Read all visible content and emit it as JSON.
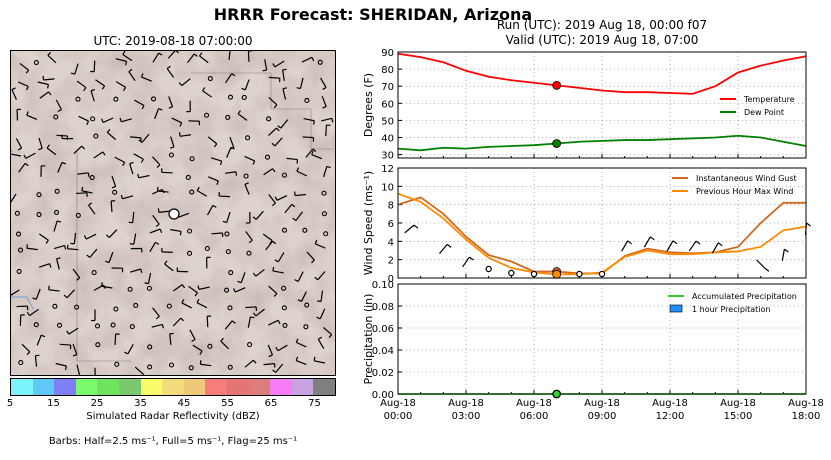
{
  "title": "HRRR Forecast: SHERIDAN, Arizona",
  "run_text": "Run (UTC): 2019 Aug 18, 00:00 f07",
  "valid_text": "Valid (UTC): 2019 Aug 18, 07:00",
  "map": {
    "title": "UTC: 2019-08-18 07:00:00",
    "colorbar_label": "Simulated Radar Reflectivity (dBZ)",
    "colorbar_ticks": [
      "5",
      "15",
      "25",
      "35",
      "45",
      "55",
      "65",
      "75"
    ],
    "colorbar_colors": [
      "#7cf4fb",
      "#5fc8f4",
      "#7f7ff6",
      "#7dfb6f",
      "#6ee35c",
      "#7cc86f",
      "#f9fb6d",
      "#f4dc7c",
      "#f0c879",
      "#f77d7a",
      "#e57474",
      "#dd7c7c",
      "#f77df8",
      "#c8a3e2",
      "#7f7f7f"
    ],
    "barb_note": "Barbs: Half=2.5 ms⁻¹, Full=5 ms⁻¹, Flag=25 ms⁻¹"
  },
  "x_tick_labels": [
    [
      "Aug-18",
      "00:00"
    ],
    [
      "Aug-18",
      "03:00"
    ],
    [
      "Aug-18",
      "06:00"
    ],
    [
      "Aug-18",
      "09:00"
    ],
    [
      "Aug-18",
      "12:00"
    ],
    [
      "Aug-18",
      "15:00"
    ],
    [
      "Aug-18",
      "18:00"
    ]
  ],
  "current_hour": 7,
  "chart_data": [
    {
      "type": "line",
      "x_unit": "hours since Aug-18 00:00",
      "ylabel": "Degrees (F)",
      "ylim": [
        28,
        90
      ],
      "yticks": [
        30,
        40,
        50,
        60,
        70,
        80,
        90
      ],
      "grid": true,
      "legend_placement": "right",
      "series": [
        {
          "name": "Temperature",
          "color": "#ff0000",
          "x": [
            0,
            1,
            2,
            3,
            4,
            5,
            6,
            7,
            8,
            9,
            10,
            11,
            12,
            13,
            14,
            15,
            16,
            17,
            18
          ],
          "values": [
            89,
            87,
            84,
            79,
            75.5,
            73.5,
            72,
            70.5,
            69,
            67.5,
            66.5,
            66.5,
            66,
            65.5,
            70,
            78,
            82,
            85,
            87.5
          ]
        },
        {
          "name": "Dew Point",
          "color": "#008000",
          "x": [
            0,
            1,
            2,
            3,
            4,
            5,
            6,
            7,
            8,
            9,
            10,
            11,
            12,
            13,
            14,
            15,
            16,
            17,
            18
          ],
          "values": [
            33.5,
            32.5,
            34,
            33.5,
            34.5,
            35,
            35.5,
            36.5,
            37.5,
            38,
            38.5,
            38.5,
            39,
            39.5,
            40,
            41,
            40,
            37.5,
            35
          ]
        }
      ]
    },
    {
      "type": "line",
      "x_unit": "hours since Aug-18 00:00",
      "ylabel": "Wind Speed (ms⁻¹)",
      "ylim": [
        0,
        12
      ],
      "yticks": [
        0,
        2,
        4,
        6,
        8,
        10,
        12
      ],
      "grid": true,
      "legend_placement": "top-right",
      "series": [
        {
          "name": "Instantaneous Wind Gust",
          "color": "#d2691e",
          "x": [
            0,
            1,
            2,
            3,
            4,
            5,
            6,
            7,
            8,
            9,
            10,
            11,
            12,
            13,
            14,
            15,
            16,
            17,
            18
          ],
          "values": [
            8,
            8.8,
            7,
            4.5,
            2.5,
            1.8,
            0.7,
            0.7,
            0.5,
            0.5,
            2.4,
            3.2,
            2.8,
            2.7,
            2.8,
            3.4,
            6,
            8.2,
            8.2
          ]
        },
        {
          "name": "Previous Hour Max Wind",
          "color": "#ff8c00",
          "x": [
            0,
            1,
            2,
            3,
            4,
            5,
            6,
            7,
            8,
            9,
            10,
            11,
            12,
            13,
            14,
            15,
            16,
            17,
            18
          ],
          "values": [
            9.2,
            8.3,
            6.5,
            4.2,
            2.2,
            1.1,
            0.6,
            0.4,
            0.4,
            0.6,
            2.3,
            3,
            2.6,
            2.6,
            2.8,
            2.9,
            3.4,
            5.2,
            5.6
          ]
        }
      ]
    },
    {
      "type": "line",
      "x_unit": "hours since Aug-18 00:00",
      "ylabel": "Precipitation (in)",
      "ylim": [
        0,
        0.1
      ],
      "yticks": [
        0.0,
        0.02,
        0.04,
        0.06,
        0.08,
        0.1
      ],
      "ytick_labels": [
        "0.00",
        "0.02",
        "0.04",
        "0.06",
        "0.08",
        "0.10"
      ],
      "grid": true,
      "legend_placement": "top-right",
      "series": [
        {
          "name": "Accumulated Precipitation",
          "color": "#32cd32",
          "x": [
            0,
            1,
            2,
            3,
            4,
            5,
            6,
            7,
            8,
            9,
            10,
            11,
            12,
            13,
            14,
            15,
            16,
            17,
            18
          ],
          "values": [
            0,
            0,
            0,
            0,
            0,
            0,
            0,
            0,
            0,
            0,
            0,
            0,
            0,
            0,
            0,
            0,
            0,
            0,
            0
          ]
        },
        {
          "name": "1 hour Precipitation",
          "color": "#1e90ff",
          "style": "bar",
          "x": [
            0,
            1,
            2,
            3,
            4,
            5,
            6,
            7,
            8,
            9,
            10,
            11,
            12,
            13,
            14,
            15,
            16,
            17,
            18
          ],
          "values": [
            0,
            0,
            0,
            0,
            0,
            0,
            0,
            0,
            0,
            0,
            0,
            0,
            0,
            0,
            0,
            0,
            0,
            0,
            0
          ]
        }
      ]
    }
  ]
}
